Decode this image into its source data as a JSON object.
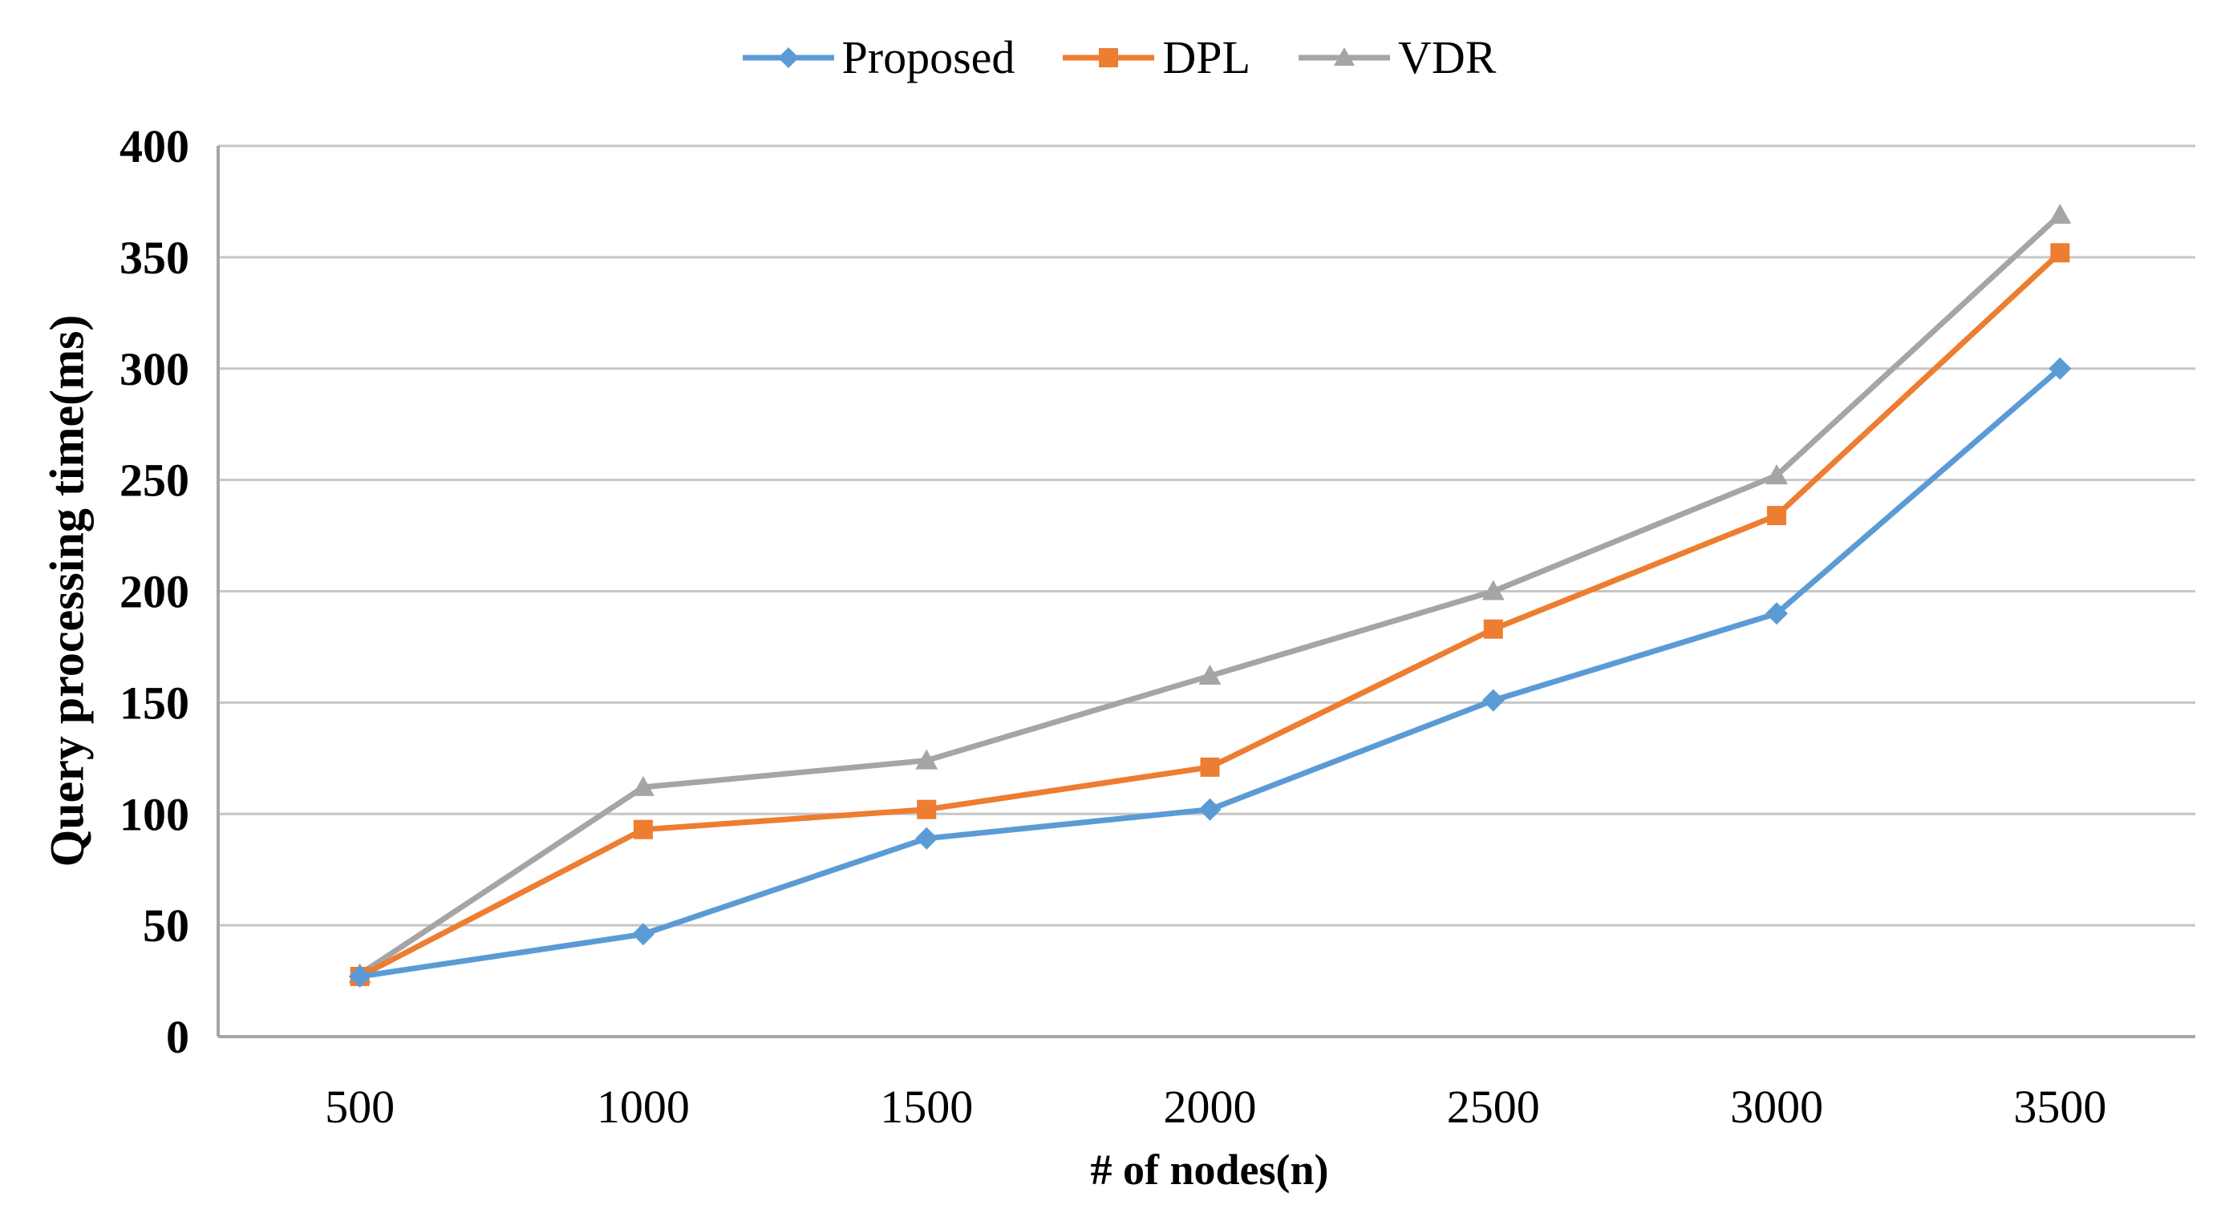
{
  "chart_data": {
    "type": "line",
    "title": "",
    "xlabel": "# of nodes(n)",
    "ylabel": "Query processing time(ms)",
    "categories": [
      500,
      1000,
      1500,
      2000,
      2500,
      3000,
      3500
    ],
    "x_tick_labels": [
      "500",
      "1000",
      "1500",
      "2000",
      "2500",
      "3000",
      "3500"
    ],
    "ylim": [
      0,
      400
    ],
    "ytick_step": 50,
    "ytick_labels": [
      "0",
      "50",
      "100",
      "150",
      "200",
      "250",
      "300",
      "350",
      "400"
    ],
    "grid": "horizontal",
    "legend_position": "top-center",
    "series": [
      {
        "name": "Proposed",
        "color": "#5B9BD5",
        "marker": "diamond",
        "values": [
          27,
          46,
          89,
          102,
          151,
          190,
          300
        ]
      },
      {
        "name": "DPL",
        "color": "#ED7D31",
        "marker": "square",
        "values": [
          27,
          93,
          102,
          121,
          183,
          234,
          352
        ]
      },
      {
        "name": "VDR",
        "color": "#A5A5A5",
        "marker": "triangle",
        "values": [
          28,
          112,
          124,
          162,
          200,
          252,
          369
        ]
      }
    ],
    "colors": {
      "gridline": "#C6C6C6",
      "axis": "#A6A6A6",
      "text": "#000000",
      "background": "#FFFFFF"
    }
  }
}
